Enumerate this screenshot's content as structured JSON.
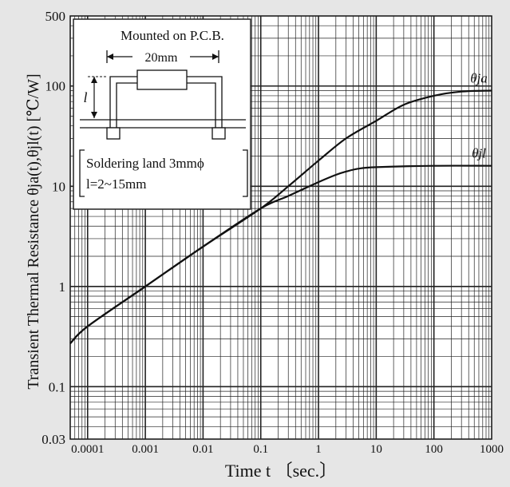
{
  "chart_data": {
    "type": "line",
    "xlabel": "Time  t  〔sec.〕",
    "ylabel": "Transient Thermal Resistance  θja(t),θjl(t) [℃/W]",
    "x_scale": "log",
    "y_scale": "log",
    "xlim": [
      5e-05,
      1000
    ],
    "ylim": [
      0.03,
      500
    ],
    "grid": true,
    "x_ticks": [
      {
        "value": 0.0001,
        "label": "0.0001"
      },
      {
        "value": 0.001,
        "label": "0.001"
      },
      {
        "value": 0.01,
        "label": "0.01"
      },
      {
        "value": 0.1,
        "label": "0.1"
      },
      {
        "value": 1,
        "label": "1"
      },
      {
        "value": 10,
        "label": "10"
      },
      {
        "value": 100,
        "label": "100"
      },
      {
        "value": 1000,
        "label": "1000"
      }
    ],
    "y_ticks": [
      {
        "value": 0.03,
        "label": "0.03"
      },
      {
        "value": 0.1,
        "label": "0.1"
      },
      {
        "value": 1,
        "label": "1"
      },
      {
        "value": 10,
        "label": "10"
      },
      {
        "value": 100,
        "label": "100"
      },
      {
        "value": 500,
        "label": "500"
      }
    ],
    "series": [
      {
        "name": "θja",
        "x": [
          5e-05,
          0.0001,
          0.001,
          0.01,
          0.1,
          0.3,
          1,
          3,
          10,
          30,
          100,
          300,
          1000
        ],
        "y": [
          0.27,
          0.4,
          1.0,
          2.5,
          6.0,
          10,
          18,
          30,
          45,
          65,
          80,
          88,
          90
        ]
      },
      {
        "name": "θjl",
        "x": [
          5e-05,
          0.0001,
          0.001,
          0.01,
          0.1,
          0.3,
          1,
          2,
          3,
          5,
          10,
          100,
          1000
        ],
        "y": [
          0.27,
          0.4,
          1.0,
          2.5,
          6.0,
          8.0,
          11,
          13,
          14,
          15,
          15.5,
          16,
          16
        ]
      }
    ]
  },
  "inset": {
    "title": "Mounted on P.C.B.",
    "dimension_label": "20mm",
    "l_label": "l",
    "land_text": "Soldering land 3mmϕ",
    "l_range_text": "l=2~15mm"
  }
}
